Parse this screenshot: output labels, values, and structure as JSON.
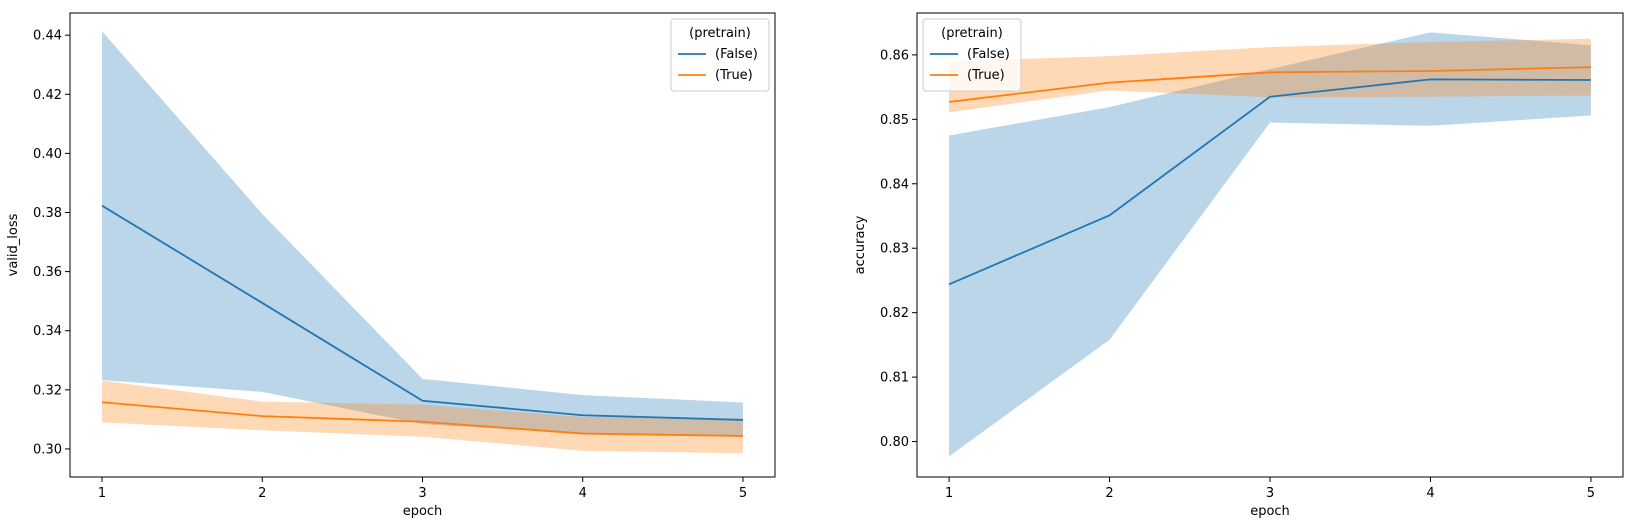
{
  "chart_data": [
    {
      "type": "line",
      "xlabel": "epoch",
      "ylabel": "valid_loss",
      "x": [
        1,
        2,
        3,
        4,
        5
      ],
      "xlim": [
        0.8,
        5.2
      ],
      "ylim": [
        0.2905,
        0.4475
      ],
      "xticks": [
        "1",
        "2",
        "3",
        "4",
        "5"
      ],
      "yticks": [
        "0.30",
        "0.32",
        "0.34",
        "0.36",
        "0.38",
        "0.40",
        "0.42",
        "0.44"
      ],
      "ytick_values": [
        0.3,
        0.32,
        0.34,
        0.36,
        0.38,
        0.4,
        0.42,
        0.44
      ],
      "grid": false,
      "legend": {
        "title": "(pretrain)",
        "position": "top-right"
      },
      "series": [
        {
          "name": "(False)",
          "color": "#1f77b4",
          "values": [
            0.3823,
            0.3494,
            0.3163,
            0.3114,
            0.3098
          ],
          "ci_low": [
            0.3233,
            0.3193,
            0.3084,
            0.3052,
            0.3044
          ],
          "ci_high": [
            0.4413,
            0.3795,
            0.3237,
            0.3182,
            0.3157
          ]
        },
        {
          "name": "(True)",
          "color": "#ff7f0e",
          "values": [
            0.3158,
            0.3111,
            0.3092,
            0.3052,
            0.3044
          ],
          "ci_low": [
            0.309,
            0.3063,
            0.3041,
            0.2994,
            0.2985
          ],
          "ci_high": [
            0.3231,
            0.316,
            0.315,
            0.3108,
            0.3102
          ]
        }
      ]
    },
    {
      "type": "line",
      "xlabel": "epoch",
      "ylabel": "accuracy",
      "x": [
        1,
        2,
        3,
        4,
        5
      ],
      "xlim": [
        0.8,
        5.2
      ],
      "ylim": [
        0.7945,
        0.8665
      ],
      "xticks": [
        "1",
        "2",
        "3",
        "4",
        "5"
      ],
      "yticks": [
        "0.80",
        "0.81",
        "0.82",
        "0.83",
        "0.84",
        "0.85",
        "0.86"
      ],
      "ytick_values": [
        0.8,
        0.81,
        0.82,
        0.83,
        0.84,
        0.85,
        0.86
      ],
      "grid": false,
      "legend": {
        "title": "(pretrain)",
        "position": "top-left"
      },
      "series": [
        {
          "name": "(False)",
          "color": "#1f77b4",
          "values": [
            0.8244,
            0.8351,
            0.8535,
            0.8562,
            0.8561
          ],
          "ci_low": [
            0.7977,
            0.8158,
            0.8495,
            0.849,
            0.8506
          ],
          "ci_high": [
            0.8475,
            0.8519,
            0.8578,
            0.8635,
            0.8615
          ]
        },
        {
          "name": "(True)",
          "color": "#ff7f0e",
          "values": [
            0.8527,
            0.8557,
            0.8573,
            0.8575,
            0.8581
          ],
          "ci_low": [
            0.8511,
            0.8545,
            0.8534,
            0.8535,
            0.8537
          ],
          "ci_high": [
            0.859,
            0.8598,
            0.8612,
            0.862,
            0.8625
          ]
        }
      ]
    }
  ]
}
